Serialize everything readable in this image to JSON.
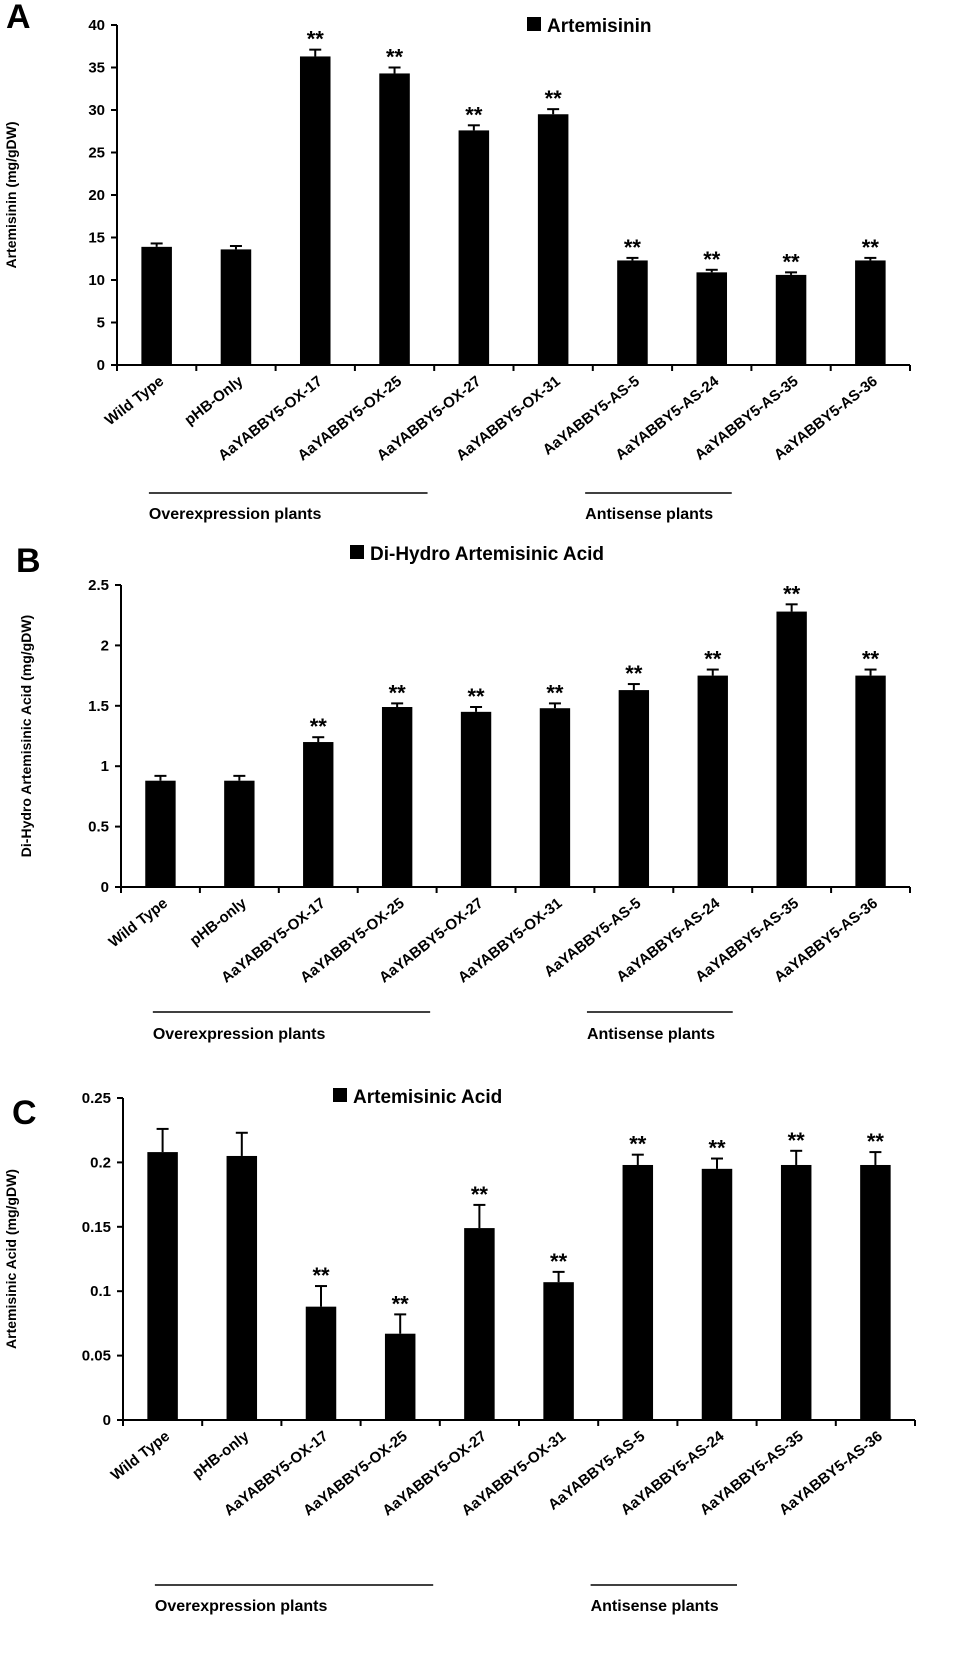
{
  "colors": {
    "bar": "#000000",
    "axis": "#000000",
    "background": "#ffffff"
  },
  "chart_data": [
    {
      "panel": "A",
      "type": "bar",
      "legend": "Artemisinin",
      "ylabel": "Artemisinin (mg/gDW)",
      "ylim": [
        0,
        40
      ],
      "yticks": [
        0,
        5,
        10,
        15,
        20,
        25,
        30,
        35,
        40
      ],
      "categories": [
        "Wild Type",
        "pHB-Only",
        "AaYABBY5-OX-17",
        "AaYABBY5-OX-25",
        "AaYABBY5-OX-27",
        "AaYABBY5-OX-31",
        "AaYABBY5-AS-5",
        "AaYABBY5-AS-24",
        "AaYABBY5-AS-35",
        "AaYABBY5-AS-36"
      ],
      "values": [
        13.9,
        13.6,
        36.3,
        34.3,
        27.6,
        29.5,
        12.3,
        10.9,
        10.6,
        12.3
      ],
      "errors": [
        0.4,
        0.4,
        0.8,
        0.7,
        0.6,
        0.6,
        0.3,
        0.3,
        0.3,
        0.3
      ],
      "significance": [
        "",
        "",
        "**",
        "**",
        "**",
        "**",
        "**",
        "**",
        "**",
        "**"
      ],
      "groups": [
        {
          "label": "Overexpression plants",
          "start": 2,
          "end": 5
        },
        {
          "label": "Antisense plants",
          "start": 6,
          "end": 9
        }
      ]
    },
    {
      "panel": "B",
      "type": "bar",
      "legend": "Di-Hydro Artemisinic Acid",
      "ylabel": "Di-Hydro Artemisinic Acid  (mg/gDW)",
      "ylim": [
        0,
        2.5
      ],
      "yticks": [
        0,
        0.5,
        1,
        1.5,
        2,
        2.5
      ],
      "categories": [
        "Wild Type",
        "pHB-only",
        "AaYABBY5-OX-17",
        "AaYABBY5-OX-25",
        "AaYABBY5-OX-27",
        "AaYABBY5-OX-31",
        "AaYABBY5-AS-5",
        "AaYABBY5-AS-24",
        "AaYABBY5-AS-35",
        "AaYABBY5-AS-36"
      ],
      "values": [
        0.88,
        0.88,
        1.2,
        1.49,
        1.45,
        1.48,
        1.63,
        1.75,
        2.28,
        1.75
      ],
      "errors": [
        0.04,
        0.04,
        0.04,
        0.03,
        0.04,
        0.04,
        0.05,
        0.05,
        0.06,
        0.05
      ],
      "significance": [
        "",
        "",
        "**",
        "**",
        "**",
        "**",
        "**",
        "**",
        "**",
        "**"
      ],
      "groups": [
        {
          "label": "Overexpression plants",
          "start": 2,
          "end": 5
        },
        {
          "label": "Antisense plants",
          "start": 6,
          "end": 9
        }
      ]
    },
    {
      "panel": "C",
      "type": "bar",
      "legend": "Artemisinic Acid",
      "ylabel": "Artemisinic Acid (mg/gDW)",
      "ylim": [
        0,
        0.25
      ],
      "yticks": [
        0,
        0.05,
        0.1,
        0.15,
        0.2,
        0.25
      ],
      "categories": [
        "Wild Type",
        "pHB-only",
        "AaYABBY5-OX-17",
        "AaYABBY5-OX-25",
        "AaYABBY5-OX-27",
        "AaYABBY5-OX-31",
        "AaYABBY5-AS-5",
        "AaYABBY5-AS-24",
        "AaYABBY5-AS-35",
        "AaYABBY5-AS-36"
      ],
      "values": [
        0.208,
        0.205,
        0.088,
        0.067,
        0.149,
        0.107,
        0.198,
        0.195,
        0.198,
        0.198
      ],
      "errors": [
        0.018,
        0.018,
        0.016,
        0.015,
        0.018,
        0.008,
        0.008,
        0.008,
        0.011,
        0.01
      ],
      "significance": [
        "",
        "",
        "**",
        "**",
        "**",
        "**",
        "**",
        "**",
        "**",
        "**"
      ],
      "groups": [
        {
          "label": "Overexpression plants",
          "start": 2,
          "end": 5
        },
        {
          "label": "Antisense plants",
          "start": 6,
          "end": 9
        }
      ]
    }
  ]
}
